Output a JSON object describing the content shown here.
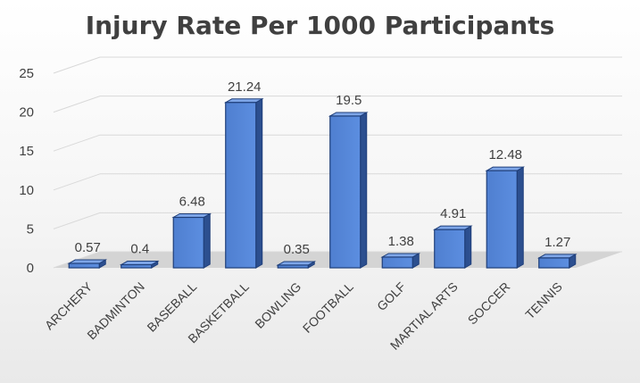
{
  "chart_data": {
    "type": "bar",
    "title": "Injury Rate Per 1000 Participants",
    "categories": [
      "ARCHERY",
      "BADMINTON",
      "BASEBALL",
      "BASKETBALL",
      "BOWLING",
      "FOOTBALL",
      "GOLF",
      "MARTIAL ARTS",
      "SOCCER",
      "TENNIS"
    ],
    "values": [
      0.57,
      0.4,
      6.48,
      21.24,
      0.35,
      19.5,
      1.38,
      4.91,
      12.48,
      1.27
    ],
    "data_labels": [
      "0.57",
      "0.4",
      "6.48",
      "21.24",
      "0.35",
      "19.5",
      "1.38",
      "4.91",
      "12.48",
      "1.27"
    ],
    "yticks": [
      "0",
      "5",
      "10",
      "15",
      "20",
      "25"
    ],
    "ylim": [
      0,
      25
    ],
    "xlabel": "",
    "ylabel": "",
    "grid": true,
    "legend": "none",
    "style": "3d-column",
    "bar_color": "#4472C4"
  }
}
